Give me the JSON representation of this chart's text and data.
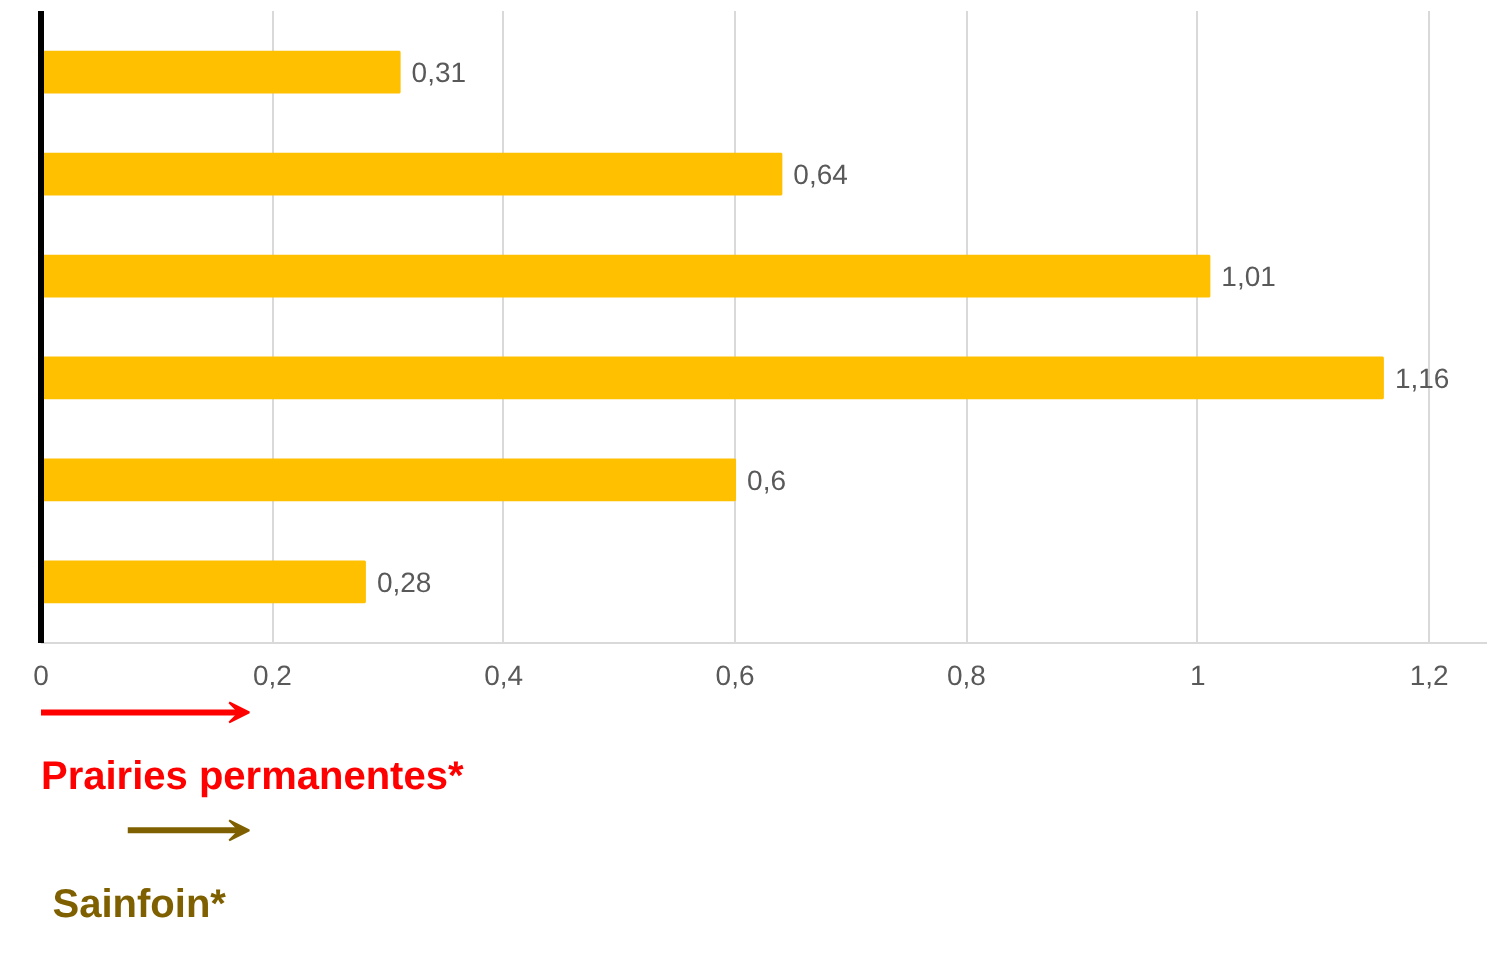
{
  "chart_data": {
    "type": "bar",
    "orientation": "horizontal",
    "categories": [
      null,
      null,
      null,
      null,
      null,
      null
    ],
    "values": [
      0.31,
      0.64,
      1.01,
      1.16,
      0.6,
      0.28
    ],
    "value_labels": [
      "0,31",
      "0,64",
      "1,01",
      "1,16",
      "0,6",
      "0,28"
    ],
    "color": "#ffc000",
    "xlim": [
      0,
      1.25
    ],
    "xticks": [
      0,
      {
        "value": 0.2,
        "label": "0,2"
      },
      {
        "value": 0.4,
        "label": "0,4"
      },
      {
        "value": 0.6,
        "label": "0,6"
      },
      {
        "value": 0.8,
        "label": "0,8"
      },
      1,
      {
        "value": 1.2,
        "label": "1,2"
      }
    ],
    "grid": "x",
    "tick_labels": "x",
    "annotations": [
      "Prairies permanentes*",
      "Sainfoin*"
    ]
  }
}
